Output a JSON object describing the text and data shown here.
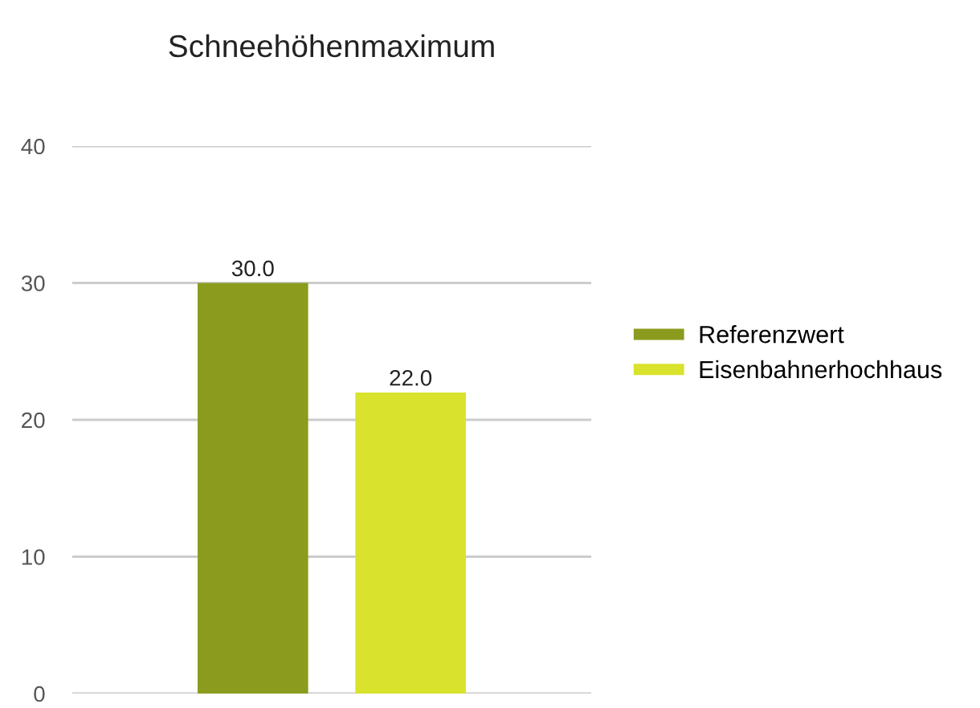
{
  "chart_data": {
    "type": "bar",
    "title": "Schneehöhenmaximum",
    "categories": [
      null
    ],
    "series": [
      {
        "name": "Referenzwert",
        "color": "#8a9b1e",
        "values": [
          30
        ],
        "value_labels": [
          "30.0"
        ]
      },
      {
        "name": "Eisenbahnerhochhaus",
        "color": "#d9e22c",
        "values": [
          22
        ],
        "value_labels": [
          "22.0"
        ]
      }
    ],
    "ylim": [
      0,
      40
    ],
    "yticks": [
      0,
      10,
      20,
      30,
      40
    ],
    "grid": "y",
    "legend": "right"
  }
}
